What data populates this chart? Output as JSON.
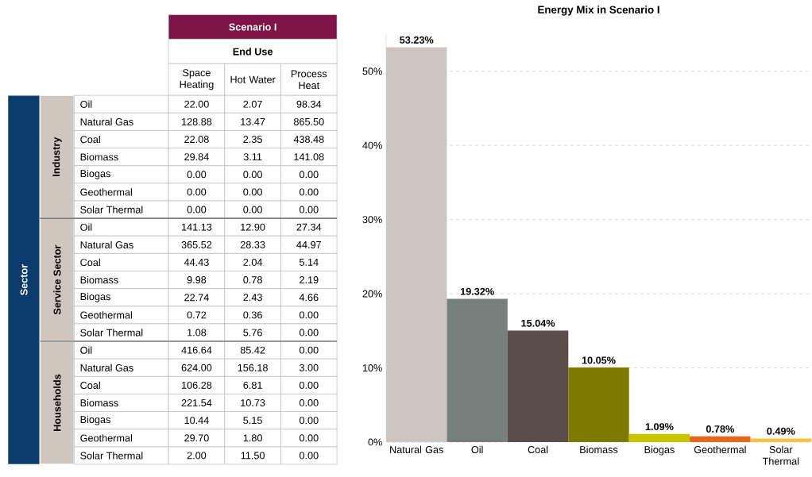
{
  "chart_data": [
    {
      "type": "other",
      "title": "Scenario I",
      "xlabel": "End Use",
      "ylabel": "Sector",
      "annotations": [
        "Industry",
        "Service Sector",
        "Households"
      ],
      "categories": [
        "Space Heating",
        "Hot Water",
        "Process Heat"
      ],
      "y_categories": [
        "Oil",
        "Natural Gas",
        "Coal",
        "Biomass",
        "Biogas",
        "Geothermal",
        "Solar Thermal",
        "Oil",
        "Natural Gas",
        "Coal",
        "Biomass",
        "Biogas",
        "Geothermal",
        "Solar Thermal",
        "Oil",
        "Natural Gas",
        "Coal",
        "Biomass",
        "Biogas",
        "Geothermal",
        "Solar Thermal"
      ],
      "cell_labels": [
        [
          "22.00",
          "2.07",
          "98.34"
        ],
        [
          "128.88",
          "13.47",
          "865.50"
        ],
        [
          "22.08",
          "2.35",
          "438.48"
        ],
        [
          "29.84",
          "3.11",
          "141.08"
        ],
        [
          "0.00",
          "0.00",
          "0.00"
        ],
        [
          "0.00",
          "0.00",
          "0.00"
        ],
        [
          "0.00",
          "0.00",
          "0.00"
        ],
        [
          "141.13",
          "12.90",
          "27.34"
        ],
        [
          "365.52",
          "28.33",
          "44.97"
        ],
        [
          "44.43",
          "2.04",
          "5.14"
        ],
        [
          "9.98",
          "0.78",
          "2.19"
        ],
        [
          "22.74",
          "2.43",
          "4.66"
        ],
        [
          "0.72",
          "0.36",
          "0.00"
        ],
        [
          "1.08",
          "5.76",
          "0.00"
        ],
        [
          "416.64",
          "85.42",
          "0.00"
        ],
        [
          "624.00",
          "156.18",
          "3.00"
        ],
        [
          "106.28",
          "6.81",
          "0.00"
        ],
        [
          "221.54",
          "10.73",
          "0.00"
        ],
        [
          "10.44",
          "5.15",
          "0.00"
        ],
        [
          "29.70",
          "1.80",
          "0.00"
        ],
        [
          "2.00",
          "11.50",
          "0.00"
        ]
      ]
    },
    {
      "type": "bar",
      "title": "Energy Mix in Scenario I",
      "categories": [
        "Natural Gas",
        "Oil",
        "Coal",
        "Biomass",
        "Biogas",
        "Geothermal",
        "Solar Thermal"
      ],
      "values": [
        53.23,
        19.32,
        15.04,
        10.05,
        1.09,
        0.78,
        0.49
      ],
      "value_labels": [
        "53.23%",
        "19.32%",
        "15.04%",
        "10.05%",
        "1.09%",
        "0.78%",
        "0.49%"
      ],
      "colors": [
        "#cdc5bf",
        "#78807e",
        "#5b4e4a",
        "#7e7a00",
        "#c8c400",
        "#e8661c",
        "#f2c53d"
      ],
      "ylim": [
        0,
        55
      ],
      "yticks": [
        {
          "value": 0,
          "label": "0%"
        },
        {
          "value": 10,
          "label": "10%"
        },
        {
          "value": 20,
          "label": "20%"
        },
        {
          "value": 30,
          "label": "30%"
        },
        {
          "value": 40,
          "label": "40%"
        },
        {
          "value": 50,
          "label": "50%"
        }
      ],
      "grid": "y"
    }
  ]
}
